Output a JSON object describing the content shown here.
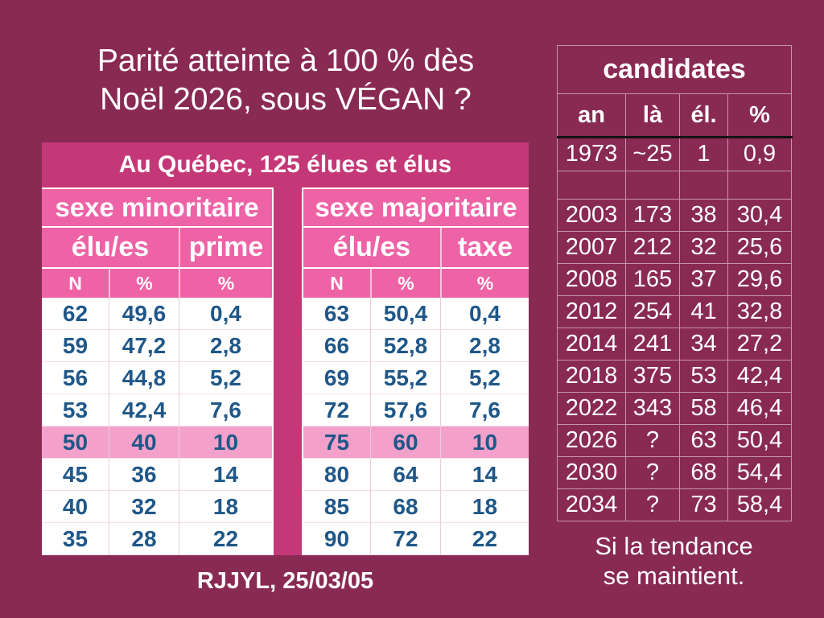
{
  "colors": {
    "background": "#892A53",
    "header_magenta": "#C53878",
    "pink": "#EE62A6",
    "highlight_pink": "#F3A1CA",
    "value_blue": "#1F5788"
  },
  "slide": {
    "title_lines": [
      "Parité atteinte à 100 % dès",
      "Noël 2026, sous VÉGAN ?"
    ],
    "credit": "RJJYL, 25/03/05",
    "note_lines": [
      "Si la tendance",
      "se maintient."
    ]
  },
  "parity_table": {
    "title": "Au Québec, 125 élues et élus",
    "groups": [
      "sexe minoritaire",
      "sexe majoritaire"
    ],
    "columns": [
      "élu/es",
      "prime",
      "élu/es",
      "taxe"
    ],
    "subheaders": [
      "N",
      "%",
      "%",
      "N",
      "%",
      "%"
    ],
    "rows": [
      [
        "62",
        "49,6",
        "0,4",
        "63",
        "50,4",
        "0,4"
      ],
      [
        "59",
        "47,2",
        "2,8",
        "66",
        "52,8",
        "2,8"
      ],
      [
        "56",
        "44,8",
        "5,2",
        "69",
        "55,2",
        "5,2"
      ],
      [
        "53",
        "42,4",
        "7,6",
        "72",
        "57,6",
        "7,6"
      ],
      [
        "50",
        "40",
        "10",
        "75",
        "60",
        "10"
      ],
      [
        "45",
        "36",
        "14",
        "80",
        "64",
        "14"
      ],
      [
        "40",
        "32",
        "18",
        "85",
        "68",
        "18"
      ],
      [
        "35",
        "28",
        "22",
        "90",
        "72",
        "22"
      ]
    ],
    "highlight_row": 4
  },
  "candidates_table": {
    "title": "candidates",
    "headers": [
      "an",
      "là",
      "él.",
      "%"
    ],
    "rows": [
      [
        "1973",
        "~25",
        "1",
        "0,9"
      ],
      [
        "",
        "",
        "",
        ""
      ],
      [
        "2003",
        "173",
        "38",
        "30,4"
      ],
      [
        "2007",
        "212",
        "32",
        "25,6"
      ],
      [
        "2008",
        "165",
        "37",
        "29,6"
      ],
      [
        "2012",
        "254",
        "41",
        "32,8"
      ],
      [
        "2014",
        "241",
        "34",
        "27,2"
      ],
      [
        "2018",
        "375",
        "53",
        "42,4"
      ],
      [
        "2022",
        "343",
        "58",
        "46,4"
      ],
      [
        "2026",
        "?",
        "63",
        "50,4"
      ],
      [
        "2030",
        "?",
        "68",
        "54,4"
      ],
      [
        "2034",
        "?",
        "73",
        "58,4"
      ]
    ]
  }
}
